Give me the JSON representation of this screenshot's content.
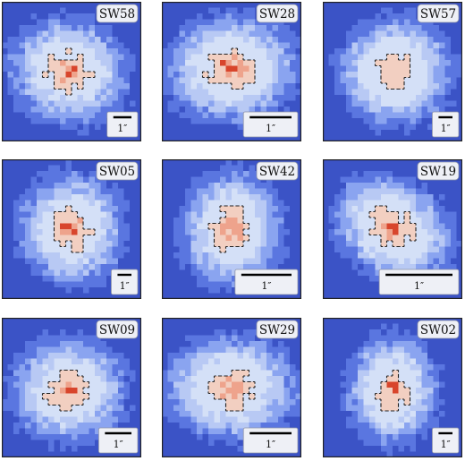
{
  "colors": {
    "background": "#3b53c6",
    "outer": "#5a76e0",
    "mid_outer": "#8aa4f0",
    "mid_inner": "#b8c9f4",
    "inner": "#d4e0f7",
    "core_light": "#f2cfc1",
    "core_mid": "#eea38c",
    "core_peak": "#d8452c"
  },
  "panels": [
    {
      "name": "SW58",
      "scalebar": "1″",
      "bar_frac": 0.13
    },
    {
      "name": "SW28",
      "scalebar": "1″",
      "bar_frac": 0.3
    },
    {
      "name": "SW57",
      "scalebar": "1″",
      "bar_frac": 0.1
    },
    {
      "name": "SW05",
      "scalebar": "1″",
      "bar_frac": 0.1
    },
    {
      "name": "SW42",
      "scalebar": "1″",
      "bar_frac": 0.36
    },
    {
      "name": "SW19",
      "scalebar": "1″",
      "bar_frac": 0.48
    },
    {
      "name": "SW09",
      "scalebar": "1″",
      "bar_frac": 0.19
    },
    {
      "name": "SW29",
      "scalebar": "1″",
      "bar_frac": 0.3
    },
    {
      "name": "SW02",
      "scalebar": "1″",
      "bar_frac": 0.1
    }
  ]
}
